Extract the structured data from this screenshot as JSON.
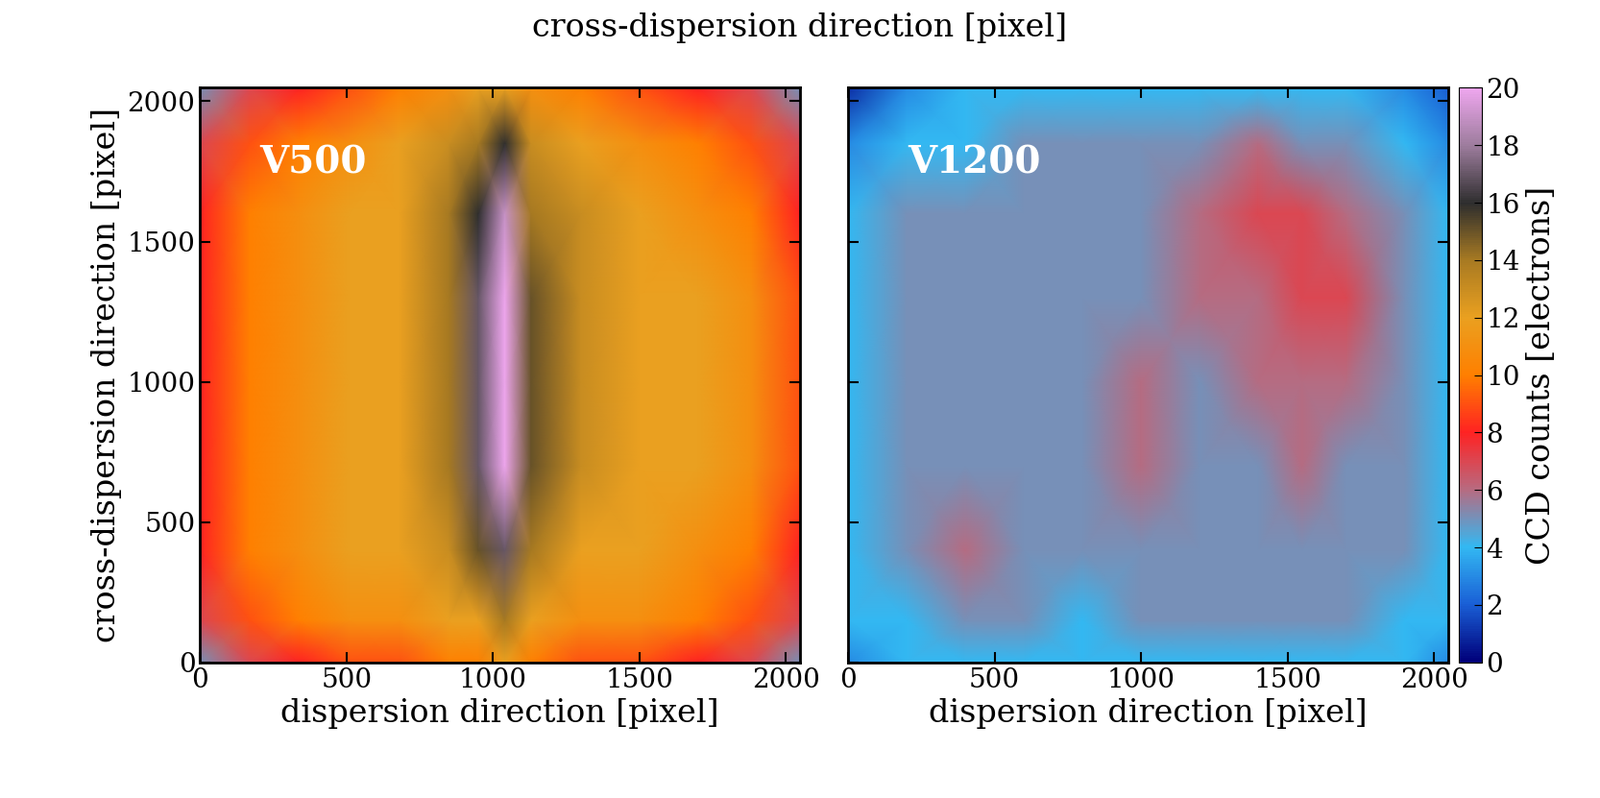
{
  "title": "cross-dispersion direction [pixel]",
  "colorbar": {
    "label": "CCD counts [electrons]",
    "range": [
      0,
      20
    ],
    "ticks": [
      0,
      2,
      4,
      6,
      8,
      10,
      12,
      14,
      16,
      18,
      20
    ]
  },
  "chart_data": [
    {
      "type": "heatmap",
      "annotation": "V500",
      "xlabel": "dispersion direction [pixel]",
      "ylabel": "cross-dispersion direction [pixel]",
      "xlim": [
        0,
        2048
      ],
      "ylim": [
        0,
        2048
      ],
      "xticks": [
        0,
        500,
        1000,
        1500,
        2000
      ],
      "yticks": [
        0,
        500,
        1000,
        1500,
        2000
      ],
      "x": [
        0,
        170,
        340,
        510,
        680,
        850,
        950,
        1040,
        1130,
        1300,
        1500,
        1700,
        1880,
        2048
      ],
      "y": [
        0,
        150,
        400,
        700,
        1000,
        1300,
        1600,
        1850,
        2048
      ],
      "cells": [
        [
          5,
          7,
          8,
          9,
          9,
          10,
          10,
          12,
          10,
          9,
          9,
          8,
          7,
          5
        ],
        [
          7,
          9,
          10,
          11,
          11,
          12,
          12,
          14,
          12,
          11,
          11,
          10,
          9,
          7
        ],
        [
          8,
          10,
          11,
          12,
          12,
          13,
          15,
          17,
          14,
          12,
          12,
          11,
          10,
          8
        ],
        [
          8,
          10,
          11,
          12,
          12,
          14,
          17,
          20,
          15,
          13,
          12,
          12,
          11,
          9
        ],
        [
          8,
          10,
          11,
          12,
          12,
          14,
          17,
          20,
          15,
          13,
          12,
          12,
          11,
          9
        ],
        [
          8,
          10,
          11,
          12,
          12,
          14,
          17,
          20,
          15,
          13,
          12,
          12,
          11,
          9
        ],
        [
          8,
          10,
          11,
          12,
          12,
          14,
          16,
          19,
          14,
          13,
          12,
          11,
          10,
          8
        ],
        [
          7,
          9,
          10,
          11,
          12,
          13,
          14,
          16,
          13,
          12,
          11,
          10,
          9,
          7
        ],
        [
          5,
          7,
          8,
          9,
          10,
          11,
          12,
          12,
          11,
          10,
          9,
          8,
          7,
          5
        ]
      ]
    },
    {
      "type": "heatmap",
      "annotation": "V1200",
      "xlabel": "dispersion direction [pixel]",
      "xlim": [
        0,
        2048
      ],
      "ylim": [
        0,
        2048
      ],
      "xticks": [
        0,
        500,
        1000,
        1500,
        2000
      ],
      "yticks": [
        0,
        500,
        1000,
        1500,
        2000
      ],
      "tick_labels": "x",
      "x": [
        0,
        200,
        400,
        600,
        800,
        1000,
        1200,
        1400,
        1550,
        1700,
        1900,
        2048
      ],
      "y": [
        0,
        150,
        400,
        700,
        1000,
        1300,
        1600,
        1850,
        2048
      ],
      "cells": [
        [
          3,
          4,
          4,
          4,
          4,
          4,
          4,
          4,
          4,
          4,
          4,
          3
        ],
        [
          4,
          4,
          5,
          5,
          4,
          5,
          5,
          5,
          5,
          5,
          4,
          4
        ],
        [
          4,
          5,
          6,
          5,
          5,
          5,
          5,
          5,
          5,
          5,
          5,
          4
        ],
        [
          4,
          5,
          5,
          5,
          5,
          6,
          5,
          5,
          6,
          5,
          5,
          4
        ],
        [
          4,
          5,
          5,
          5,
          5,
          6,
          5,
          6,
          6,
          6,
          5,
          4
        ],
        [
          4,
          5,
          5,
          5,
          5,
          5,
          6,
          6,
          7,
          7,
          5,
          4
        ],
        [
          4,
          5,
          5,
          5,
          5,
          5,
          6,
          7,
          7,
          6,
          5,
          4
        ],
        [
          3,
          4,
          4,
          5,
          5,
          5,
          5,
          6,
          5,
          5,
          4,
          3
        ],
        [
          1,
          3,
          4,
          4,
          4,
          4,
          4,
          4,
          4,
          4,
          3,
          2
        ]
      ]
    }
  ]
}
